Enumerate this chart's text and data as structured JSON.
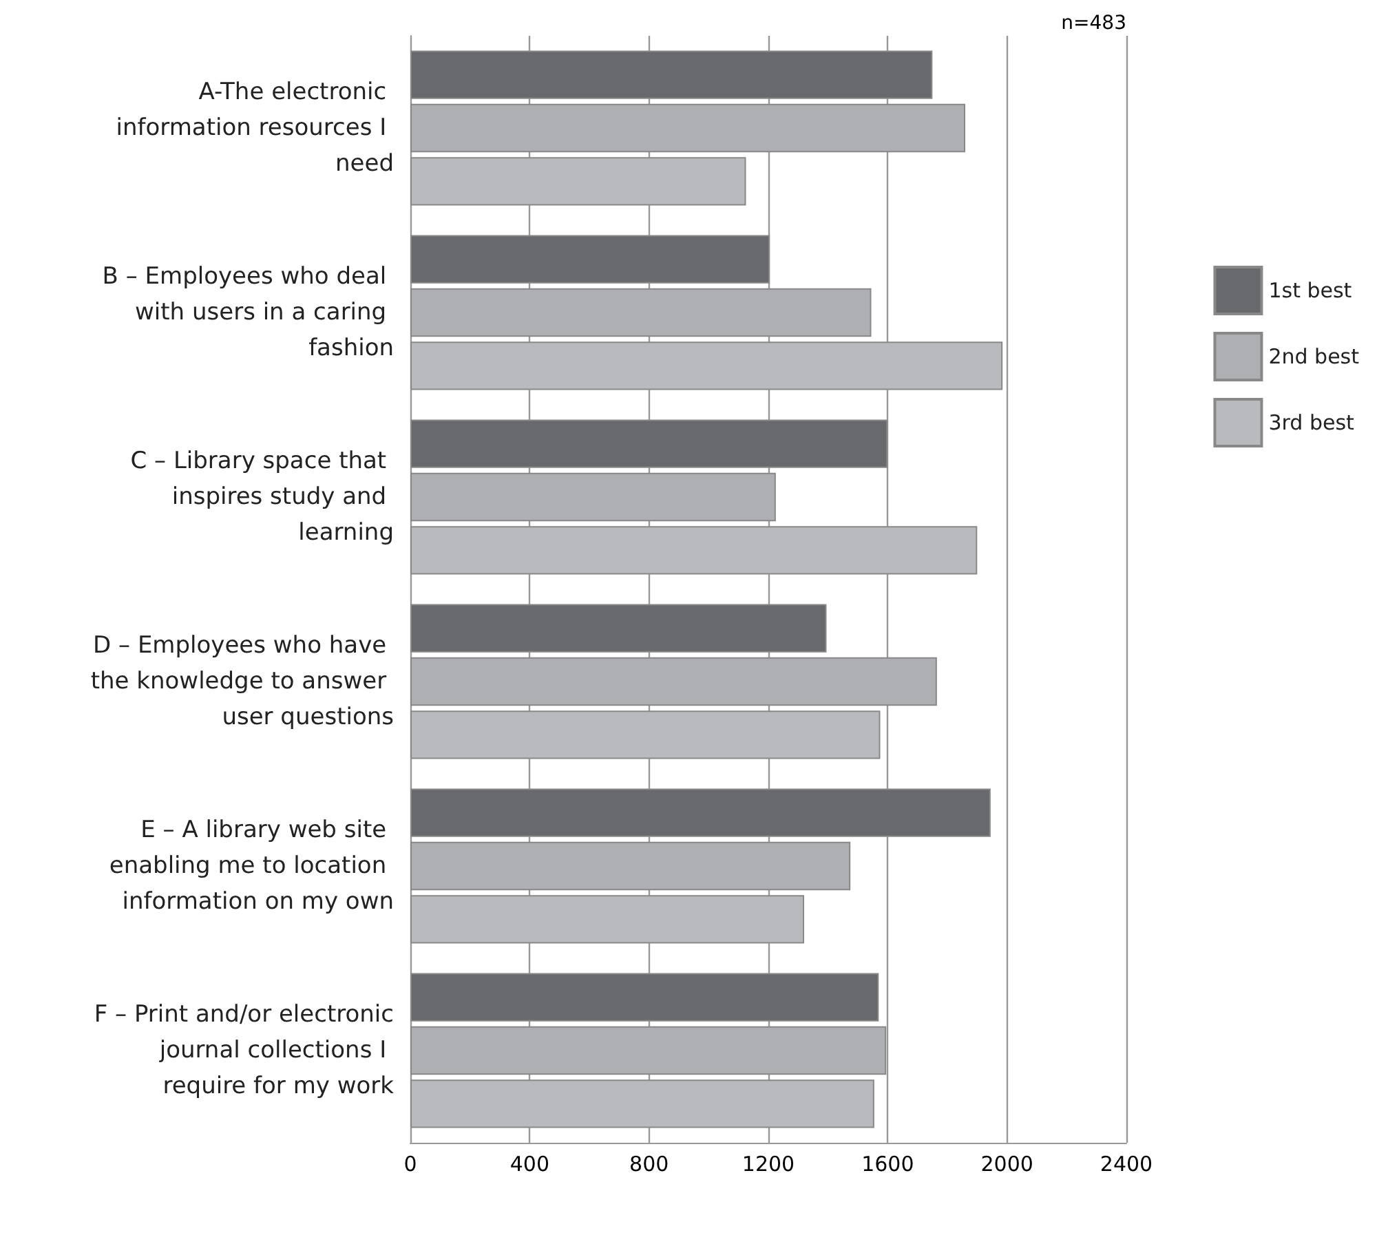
{
  "chart_data": {
    "type": "bar",
    "orientation": "horizontal",
    "categories": [
      "A-The electronic information resources I need",
      "B – Employees who deal with users in a caring fashion",
      "C – Library space that inspires study and learning",
      "D – Employees who have the knowledge to answer user questions",
      "E – A library web site enabling me to location information on my own",
      "F – Print and/or electronic journal collections I require for my work"
    ],
    "series": [
      {
        "name": "1st best",
        "color": "#68696c",
        "values": [
          1750,
          1205,
          1600,
          1395,
          1945,
          1570
        ]
      },
      {
        "name": "2nd best",
        "color": "#aeafb2",
        "values": [
          1860,
          1545,
          1225,
          1765,
          1475,
          1595
        ]
      },
      {
        "name": "3rd best",
        "color": "#b9babd",
        "values": [
          1125,
          1985,
          1900,
          1575,
          1320,
          1555
        ]
      }
    ],
    "xlim": [
      0,
      2400
    ],
    "xticks": [
      0,
      400,
      800,
      1200,
      1600,
      2000,
      2400
    ],
    "grid": "x",
    "legend": "right",
    "annotations": [
      "n=483"
    ]
  }
}
